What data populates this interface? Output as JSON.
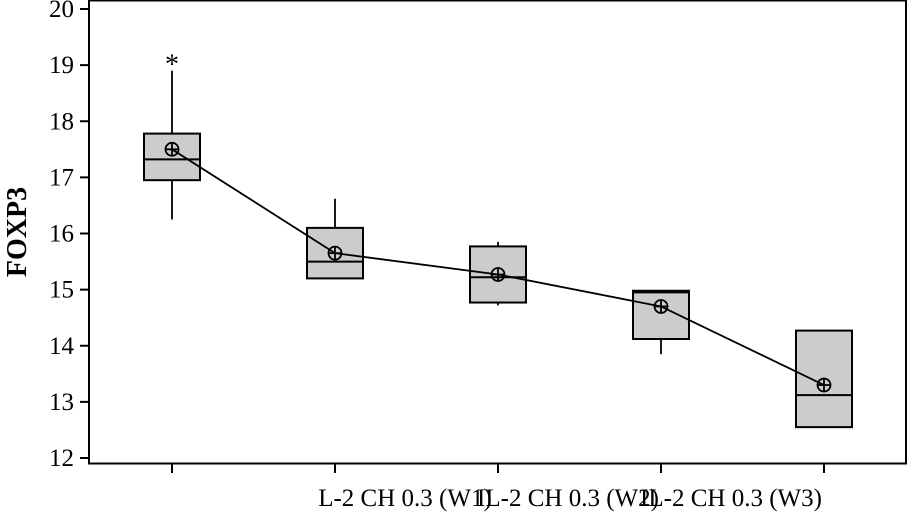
{
  "chart_data": {
    "type": "boxplot",
    "ylabel": "FOXP3",
    "xlabel": "",
    "ylim": [
      12,
      20
    ],
    "yticks": [
      12,
      13,
      14,
      15,
      16,
      17,
      18,
      19,
      20
    ],
    "x_tick_labels": [
      {
        "position": 2,
        "label": "L-2 CH 0.3 (W1)"
      },
      {
        "position": 3,
        "label": "IL-2 CH 0.3 (W2)"
      },
      {
        "position": 4,
        "label": "IL-2 CH 0.3 (W3)"
      }
    ],
    "mean_line": true,
    "mean_marker": "circle-plus",
    "colors": {
      "box_fill": "#cccccc",
      "stroke": "#000000",
      "background": "#ffffff"
    },
    "groups": [
      {
        "whisker_low": 16.25,
        "q1": 16.95,
        "median": 17.32,
        "q3": 17.78,
        "whisker_high": 18.9,
        "mean": 17.5,
        "outliers": [
          19.1
        ]
      },
      {
        "whisker_low": 15.2,
        "q1": 15.2,
        "median": 15.5,
        "q3": 16.1,
        "whisker_high": 16.62,
        "mean": 15.65,
        "outliers": []
      },
      {
        "whisker_low": 14.72,
        "q1": 14.77,
        "median": 15.22,
        "q3": 15.77,
        "whisker_high": 15.85,
        "mean": 15.27,
        "outliers": []
      },
      {
        "whisker_low": 13.85,
        "q1": 14.12,
        "median": 14.95,
        "q3": 14.98,
        "whisker_high": 14.98,
        "mean": 14.7,
        "outliers": []
      },
      {
        "whisker_low": 12.55,
        "q1": 12.55,
        "median": 13.12,
        "q3": 14.27,
        "whisker_high": 14.27,
        "mean": 13.3,
        "outliers": []
      }
    ]
  }
}
